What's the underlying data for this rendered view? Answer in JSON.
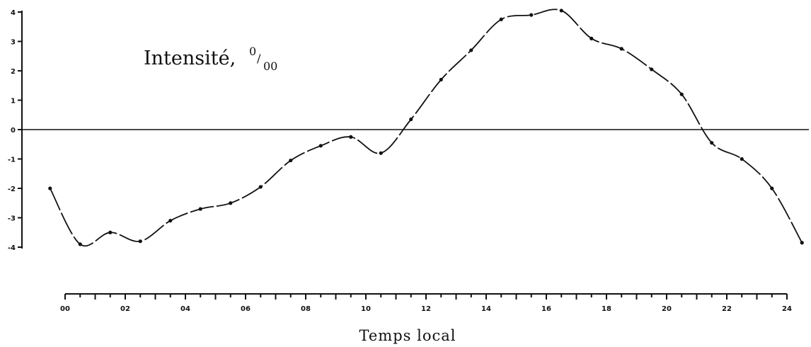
{
  "chart_data": {
    "type": "line",
    "annotation": {
      "text": "Intensité,",
      "unit_sup": "0",
      "unit_sep": "/",
      "unit_sub": "00"
    },
    "xlabel": "Temps local",
    "ylabel": "",
    "xlim": [
      0,
      24
    ],
    "ylim": [
      -4,
      4
    ],
    "x_ticks": [
      "00",
      "02",
      "04",
      "06",
      "08",
      "10",
      "12",
      "14",
      "16",
      "18",
      "20",
      "22",
      "24"
    ],
    "x_tick_values": [
      0,
      2,
      4,
      6,
      8,
      10,
      12,
      14,
      16,
      18,
      20,
      22,
      24
    ],
    "y_ticks": [
      "4",
      "3",
      "2",
      "1",
      "0",
      "-1",
      "-2",
      "-3",
      "-4"
    ],
    "y_tick_values": [
      4,
      3,
      2,
      1,
      0,
      -1,
      -2,
      -3,
      -4
    ],
    "reference_line_y": 0,
    "series": [
      {
        "x": [
          -0.5,
          0.5,
          1.5,
          2.5,
          3.5,
          4.5,
          5.5,
          6.5,
          7.5,
          8.5,
          9.5,
          10.5,
          11.5,
          12.5,
          13.5,
          14.5,
          15.5,
          16.5,
          17.5,
          18.5,
          19.5,
          20.5,
          21.5,
          22.5,
          23.5,
          24.5
        ],
        "values": [
          -2.0,
          -3.9,
          -3.5,
          -3.8,
          -3.1,
          -2.7,
          -2.5,
          -1.95,
          -1.05,
          -0.55,
          -0.25,
          -0.8,
          0.35,
          1.7,
          2.7,
          3.75,
          3.9,
          4.05,
          3.1,
          2.75,
          2.05,
          1.2,
          -0.45,
          -1.0,
          -2.0,
          -3.85
        ]
      }
    ]
  }
}
